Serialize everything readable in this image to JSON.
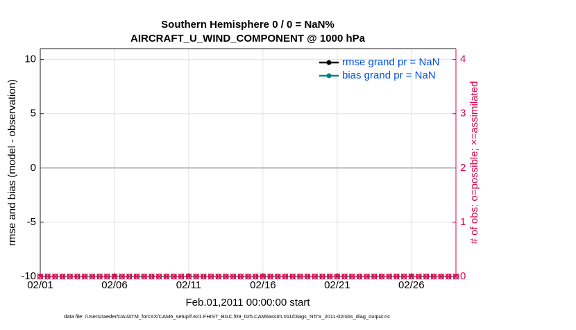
{
  "chart_data": {
    "type": "line",
    "title": [
      "Southern Hemisphere 0 / 0 = NaN%",
      "AIRCRAFT_U_WIND_COMPONENT @ 1000 hPa"
    ],
    "ylabel": "rmse and bias (model - observation)",
    "y2label": "# of obs: o=possible; ×=assimilated",
    "xlabel": "Feb.01,2011 00:00:00 start",
    "footnote": "data file: /Users/raeder/DAI/ATM_forcXX/CAM6_setup/f.e21.FHIST_BGC.f09_025.CAM6assim.011/Diags_NTrS_2011-02/obs_diag_output.nc",
    "xlim": [
      1,
      29
    ],
    "xticks": [
      {
        "value": 1,
        "label": "02/01"
      },
      {
        "value": 6,
        "label": "02/06"
      },
      {
        "value": 11,
        "label": "02/11"
      },
      {
        "value": 16,
        "label": "02/16"
      },
      {
        "value": 21,
        "label": "02/21"
      },
      {
        "value": 26,
        "label": "02/26"
      }
    ],
    "ylim": [
      -10,
      11
    ],
    "yticks": [
      -10,
      -5,
      0,
      5,
      10
    ],
    "y2lim": [
      0,
      4.2
    ],
    "y2ticks": [
      0,
      1,
      2,
      3,
      4
    ],
    "grid": true,
    "legend": "upper right",
    "x": [
      1,
      1.5,
      2,
      2.5,
      3,
      3.5,
      4,
      4.5,
      5,
      5.5,
      6,
      6.5,
      7,
      7.5,
      8,
      8.5,
      9,
      9.5,
      10,
      10.5,
      11,
      11.5,
      12,
      12.5,
      13,
      13.5,
      14,
      14.5,
      15,
      15.5,
      16,
      16.5,
      17,
      17.5,
      18,
      18.5,
      19,
      19.5,
      20,
      20.5,
      21,
      21.5,
      22,
      22.5,
      23,
      23.5,
      24,
      24.5,
      25,
      25.5,
      26,
      26.5,
      27,
      27.5,
      28,
      28.5,
      29
    ],
    "series": [
      {
        "name": "rmse grand pr = NaN",
        "color": "#000000",
        "values": [
          null,
          null,
          null,
          null,
          null,
          null,
          null,
          null,
          null,
          null,
          null,
          null,
          null,
          null,
          null,
          null,
          null,
          null,
          null,
          null,
          null,
          null,
          null,
          null,
          null,
          null,
          null,
          null,
          null,
          null,
          null,
          null,
          null,
          null,
          null,
          null,
          null,
          null,
          null,
          null,
          null,
          null,
          null,
          null,
          null,
          null,
          null,
          null,
          null,
          null,
          null,
          null,
          null,
          null,
          null,
          null,
          null
        ]
      },
      {
        "name": "bias grand pr = NaN",
        "color": "#008080",
        "values": [
          null,
          null,
          null,
          null,
          null,
          null,
          null,
          null,
          null,
          null,
          null,
          null,
          null,
          null,
          null,
          null,
          null,
          null,
          null,
          null,
          null,
          null,
          null,
          null,
          null,
          null,
          null,
          null,
          null,
          null,
          null,
          null,
          null,
          null,
          null,
          null,
          null,
          null,
          null,
          null,
          null,
          null,
          null,
          null,
          null,
          null,
          null,
          null,
          null,
          null,
          null,
          null,
          null,
          null,
          null,
          null,
          null
        ]
      },
      {
        "color": "#e0004c",
        "axis": "y2",
        "marker": "o",
        "values": [
          0,
          0,
          0,
          0,
          0,
          0,
          0,
          0,
          0,
          0,
          0,
          0,
          0,
          0,
          0,
          0,
          0,
          0,
          0,
          0,
          0,
          0,
          0,
          0,
          0,
          0,
          0,
          0,
          0,
          0,
          0,
          0,
          0,
          0,
          0,
          0,
          0,
          0,
          0,
          0,
          0,
          0,
          0,
          0,
          0,
          0,
          0,
          0,
          0,
          0,
          0,
          0,
          0,
          0,
          0,
          0,
          0
        ]
      },
      {
        "color": "#e0004c",
        "axis": "y2",
        "marker": "x",
        "values": [
          0,
          0,
          0,
          0,
          0,
          0,
          0,
          0,
          0,
          0,
          0,
          0,
          0,
          0,
          0,
          0,
          0,
          0,
          0,
          0,
          0,
          0,
          0,
          0,
          0,
          0,
          0,
          0,
          0,
          0,
          0,
          0,
          0,
          0,
          0,
          0,
          0,
          0,
          0,
          0,
          0,
          0,
          0,
          0,
          0,
          0,
          0,
          0,
          0,
          0,
          0,
          0,
          0,
          0,
          0,
          0,
          0
        ]
      }
    ]
  }
}
